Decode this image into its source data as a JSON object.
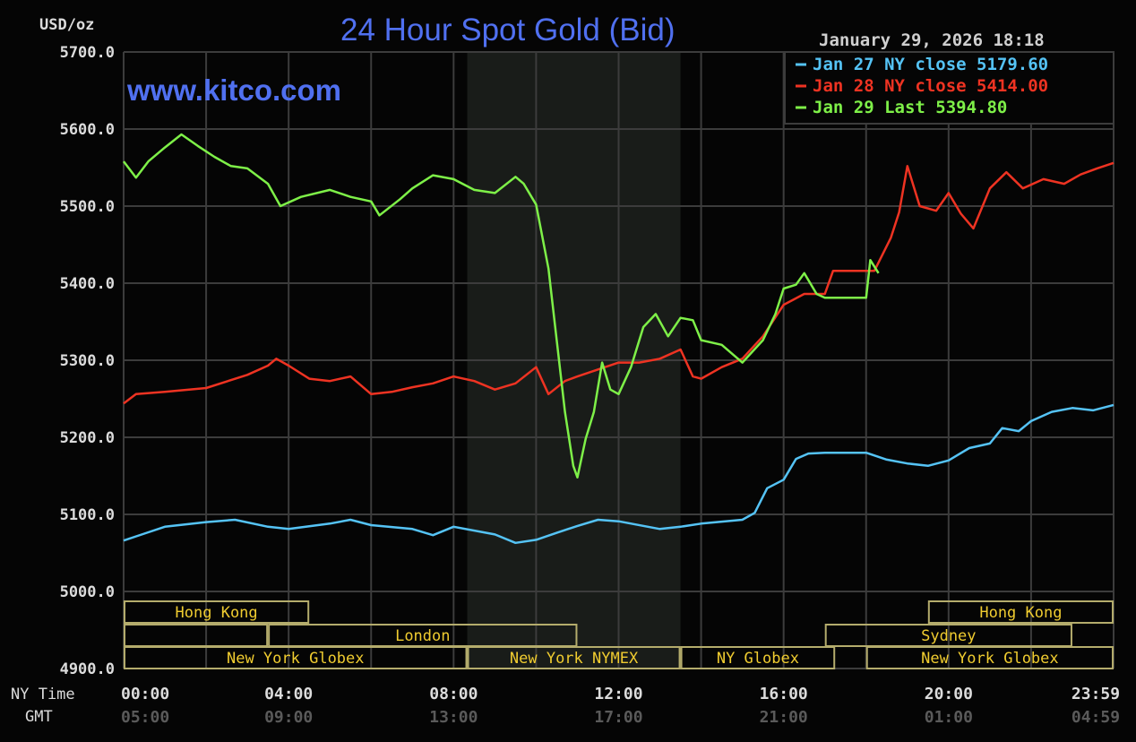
{
  "chart_data": {
    "type": "line",
    "title": "24 Hour Spot Gold (Bid)",
    "watermark": "www.kitco.com",
    "timestamp": "January 29, 2026 18:18",
    "ylabel": "USD/oz",
    "ylim": [
      4900,
      5700
    ],
    "yticks": [
      "5700.0",
      "5600.0",
      "5500.0",
      "5400.0",
      "5300.0",
      "5200.0",
      "5100.0",
      "5000.0",
      "4900.0"
    ],
    "xlim_hours": [
      0,
      24
    ],
    "x_row_label_ny": "NY Time",
    "x_row_label_gmt": "GMT",
    "xticks_ny": [
      "00:00",
      "04:00",
      "08:00",
      "12:00",
      "16:00",
      "20:00",
      "23:59"
    ],
    "xticks_gmt": [
      "05:00",
      "09:00",
      "13:00",
      "17:00",
      "21:00",
      "01:00",
      "04:59"
    ],
    "grid": true,
    "legend_placement": "top-right",
    "highlight_hours": [
      8.33,
      13.5
    ],
    "colors": {
      "background": "#050505",
      "grid": "#3c3c3c",
      "highlight": "#191c19",
      "title": "#5070f0",
      "session_border": "#b4ac6c",
      "session_text": "#f0cc30",
      "axis_text": "#dcdcdc",
      "gmt_text": "#5a5a5a"
    },
    "series": [
      {
        "name": "Jan 27 NY close 5179.60",
        "color": "#55c3f5",
        "x": [
          0,
          0.5,
          1,
          2,
          2.7,
          3.5,
          4,
          5,
          5.5,
          6,
          7,
          7.5,
          8,
          9,
          9.5,
          10,
          10.5,
          11,
          11.5,
          12,
          13,
          13.5,
          14,
          15,
          15.3,
          15.6,
          16,
          16.3,
          16.6,
          17,
          18,
          18.5,
          19,
          19.5,
          20,
          20.5,
          21,
          21.3,
          21.7,
          22,
          22.5,
          23,
          23.5,
          24
        ],
        "y": [
          5066,
          5075,
          5084,
          5090,
          5093,
          5084,
          5081,
          5088,
          5093,
          5086,
          5081,
          5073,
          5084,
          5074,
          5063,
          5067,
          5076,
          5085,
          5093,
          5091,
          5081,
          5084,
          5088,
          5093,
          5102,
          5134,
          5145,
          5172,
          5179,
          5180,
          5180,
          5171,
          5166,
          5163,
          5170,
          5186,
          5192,
          5212,
          5208,
          5221,
          5233,
          5238,
          5235,
          5242
        ]
      },
      {
        "name": "Jan 28 NY close 5414.00",
        "color": "#ee3322",
        "x": [
          0,
          0.3,
          1,
          2,
          3,
          3.5,
          3.7,
          4,
          4.5,
          5,
          5.5,
          6,
          6.5,
          7,
          7.5,
          8,
          8.5,
          9,
          9.5,
          10,
          10.3,
          10.7,
          11,
          11.5,
          12,
          12.5,
          13,
          13.5,
          13.8,
          14,
          14.5,
          15,
          15.5,
          16,
          16.5,
          17,
          17.2,
          18.2,
          18.6,
          18.8,
          19,
          19.3,
          19.7,
          20,
          20.3,
          20.6,
          21,
          21.4,
          21.8,
          22.3,
          22.8,
          23.2,
          23.6,
          24
        ],
        "y": [
          5244,
          5256,
          5259,
          5264,
          5281,
          5293,
          5302,
          5293,
          5276,
          5273,
          5279,
          5256,
          5259,
          5265,
          5270,
          5279,
          5273,
          5262,
          5270,
          5291,
          5256,
          5273,
          5279,
          5288,
          5297,
          5297,
          5302,
          5314,
          5279,
          5276,
          5291,
          5302,
          5331,
          5372,
          5386,
          5386,
          5416,
          5416,
          5459,
          5492,
          5552,
          5500,
          5494,
          5517,
          5490,
          5471,
          5523,
          5544,
          5523,
          5535,
          5529,
          5541,
          5549,
          5556
        ]
      },
      {
        "name": "Jan 29 Last 5394.80",
        "color": "#7ef048",
        "x": [
          0,
          0.3,
          0.6,
          1,
          1.4,
          1.8,
          2.2,
          2.6,
          3,
          3.5,
          3.8,
          4.3,
          5,
          5.5,
          6,
          6.2,
          6.7,
          7,
          7.5,
          8,
          8.5,
          9,
          9.5,
          9.7,
          10,
          10.3,
          10.5,
          10.7,
          10.9,
          11,
          11.2,
          11.4,
          11.6,
          11.8,
          12,
          12.3,
          12.6,
          12.9,
          13.2,
          13.5,
          13.8,
          14,
          14.5,
          15,
          15.5,
          15.8,
          16,
          16.3,
          16.5,
          16.8,
          17,
          18,
          18.1,
          18.3
        ],
        "y": [
          5558,
          5537,
          5558,
          5576,
          5593,
          5578,
          5564,
          5552,
          5549,
          5529,
          5500,
          5512,
          5521,
          5512,
          5506,
          5488,
          5509,
          5523,
          5540,
          5535,
          5521,
          5517,
          5538,
          5529,
          5502,
          5419,
          5326,
          5233,
          5163,
          5148,
          5198,
          5233,
          5297,
          5262,
          5256,
          5291,
          5343,
          5360,
          5331,
          5355,
          5352,
          5326,
          5320,
          5297,
          5326,
          5360,
          5393,
          5398,
          5413,
          5386,
          5381,
          5381,
          5430,
          5413
        ]
      }
    ],
    "sessions": [
      {
        "label": "Hong Kong",
        "row": 0,
        "start": 0,
        "end": 4.5
      },
      {
        "label": "Hong Kong",
        "row": 0,
        "start": 19.5,
        "end": 24
      },
      {
        "label": "",
        "row": 1,
        "start": 0,
        "end": 3.5
      },
      {
        "label": "London",
        "row": 1,
        "start": 3.5,
        "end": 11
      },
      {
        "label": "Sydney",
        "row": 1,
        "start": 17,
        "end": 23
      },
      {
        "label": "New York Globex",
        "row": 2,
        "start": 0,
        "end": 8.33
      },
      {
        "label": "New York NYMEX",
        "row": 2,
        "start": 8.33,
        "end": 13.5
      },
      {
        "label": "NY Globex",
        "row": 2,
        "start": 13.5,
        "end": 17.25
      },
      {
        "label": "New York Globex",
        "row": 2,
        "start": 18,
        "end": 24
      }
    ]
  }
}
